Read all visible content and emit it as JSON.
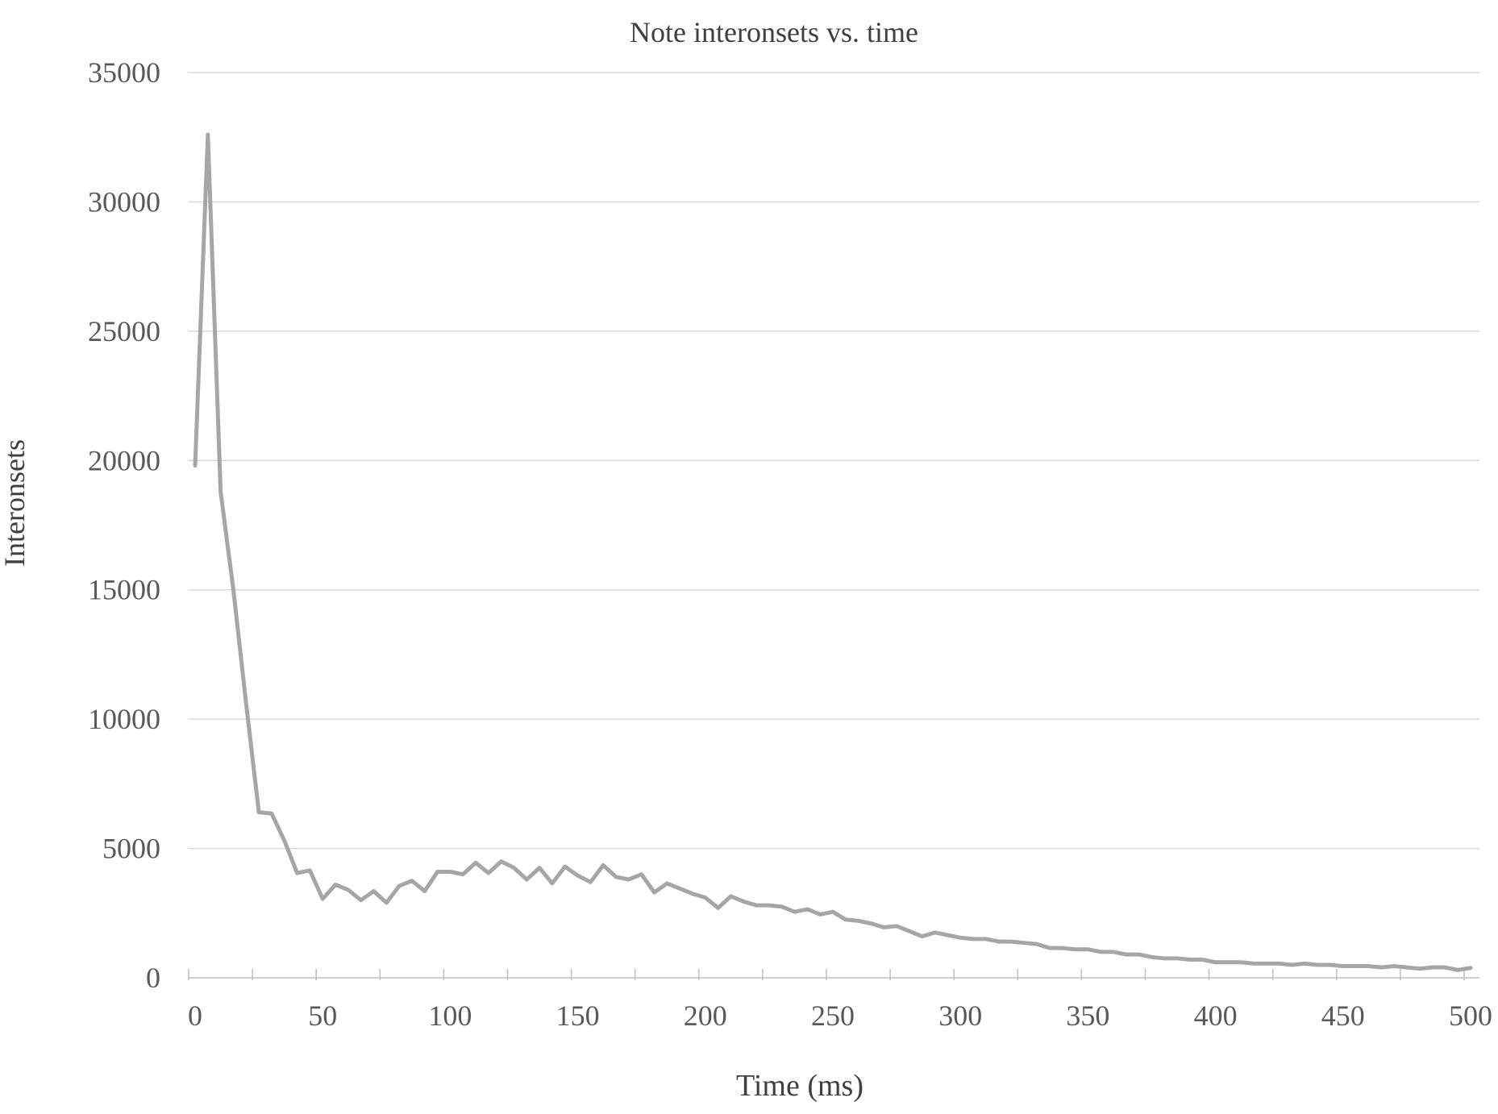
{
  "chart_data": {
    "type": "line",
    "title": "Note interonsets vs. time",
    "xlabel": "Time (ms)",
    "ylabel": "Interonsets",
    "xlim": [
      0,
      500
    ],
    "ylim": [
      0,
      35000
    ],
    "x_ticks": [
      0,
      50,
      100,
      150,
      200,
      250,
      300,
      350,
      400,
      450,
      500
    ],
    "y_ticks": [
      0,
      5000,
      10000,
      15000,
      20000,
      25000,
      30000,
      35000
    ],
    "grid": "horizontal",
    "legend": "none",
    "colors": {
      "line": "#a6a6a6",
      "grid": "#d9d9d9",
      "text": "#595959",
      "axis": "#bfbfbf"
    },
    "series": [
      {
        "x": [
          0,
          5,
          10,
          15,
          20,
          25,
          30,
          35,
          40,
          45,
          50,
          55,
          60,
          65,
          70,
          75,
          80,
          85,
          90,
          95,
          100,
          105,
          110,
          115,
          120,
          125,
          130,
          135,
          140,
          145,
          150,
          155,
          160,
          165,
          170,
          175,
          180,
          185,
          190,
          195,
          200,
          205,
          210,
          215,
          220,
          225,
          230,
          235,
          240,
          245,
          250,
          255,
          260,
          265,
          270,
          275,
          280,
          285,
          290,
          295,
          300,
          305,
          310,
          315,
          320,
          325,
          330,
          335,
          340,
          345,
          350,
          355,
          360,
          365,
          370,
          375,
          380,
          385,
          390,
          395,
          400,
          405,
          410,
          415,
          420,
          425,
          430,
          435,
          440,
          445,
          450,
          455,
          460,
          465,
          470,
          475,
          480,
          485,
          490,
          495,
          500
        ],
        "values": [
          19800,
          32600,
          18800,
          15000,
          10600,
          6400,
          6350,
          5300,
          4050,
          4150,
          3050,
          3600,
          3400,
          3000,
          3350,
          2900,
          3550,
          3750,
          3350,
          4100,
          4100,
          4000,
          4450,
          4050,
          4500,
          4250,
          3800,
          4250,
          3650,
          4300,
          3950,
          3700,
          4350,
          3900,
          3800,
          4000,
          3300,
          3650,
          3450,
          3250,
          3100,
          2700,
          3150,
          2950,
          2800,
          2800,
          2750,
          2550,
          2650,
          2450,
          2550,
          2250,
          2200,
          2100,
          1950,
          2000,
          1800,
          1600,
          1750,
          1650,
          1550,
          1500,
          1500,
          1400,
          1400,
          1350,
          1300,
          1150,
          1150,
          1100,
          1100,
          1000,
          1000,
          900,
          900,
          800,
          750,
          750,
          700,
          700,
          600,
          600,
          600,
          550,
          550,
          550,
          500,
          550,
          500,
          500,
          450,
          450,
          450,
          400,
          450,
          400,
          350,
          400,
          400,
          300,
          380
        ]
      }
    ]
  }
}
